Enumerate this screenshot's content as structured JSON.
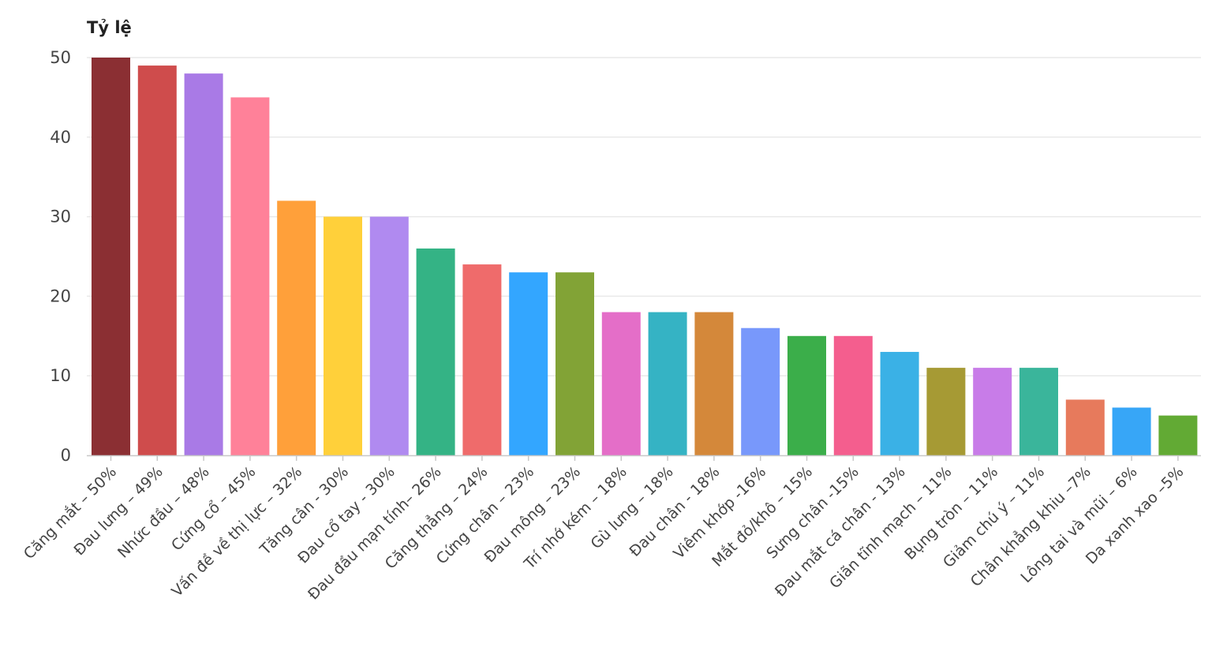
{
  "chart_data": {
    "type": "bar",
    "ylabel": "Tỷ lệ",
    "xlabel": "",
    "ylim": [
      0,
      50
    ],
    "yticks": [
      "0",
      "10",
      "20",
      "30",
      "40",
      "50"
    ],
    "grid": true,
    "categories": [
      "Căng mắt – 50%",
      "Đau lưng – 49%",
      "Nhức đầu – 48%",
      "Cứng cổ – 45%",
      "Vấn đề về thị lực – 32%",
      "Tăng cân - 30%",
      "Đau cổ tay - 30%",
      "Đau đầu mạn tính– 26%",
      "Căng thẳng – 24%",
      "Cứng chân – 23%",
      "Đau mông – 23%",
      "Trí nhớ kém – 18%",
      "Gù lưng – 18%",
      "Đau chân - 18%",
      "Viêm khớp -16%",
      "Mắt đỏ/khô – 15%",
      "Sưng chân -15%",
      "Đau mắt cá chân - 13%",
      "Giãn tĩnh mạch – 11%",
      "Bụng tròn – 11%",
      "Giảm chú ý – 11%",
      "Chân khẳng khiu –7%",
      "Lông tai và mũi – 6%",
      "Da xanh xao –5%"
    ],
    "values": [
      50,
      49,
      48,
      45,
      32,
      30,
      30,
      26,
      24,
      23,
      23,
      18,
      18,
      18,
      16,
      15,
      15,
      13,
      11,
      11,
      11,
      7,
      6,
      5
    ],
    "colors": [
      "#8b2f33",
      "#cf4c4c",
      "#a97ae6",
      "#ff8199",
      "#ffa03a",
      "#ffd03a",
      "#b08af0",
      "#34b385",
      "#ef6b6b",
      "#33a6ff",
      "#82a336",
      "#e46ec8",
      "#35b3c4",
      "#d4883a",
      "#7898fb",
      "#3bae4a",
      "#f45e8e",
      "#3ab1e6",
      "#a69a34",
      "#c87ce8",
      "#3ab59b",
      "#e77a5c",
      "#37a6f7",
      "#62aa34"
    ]
  }
}
